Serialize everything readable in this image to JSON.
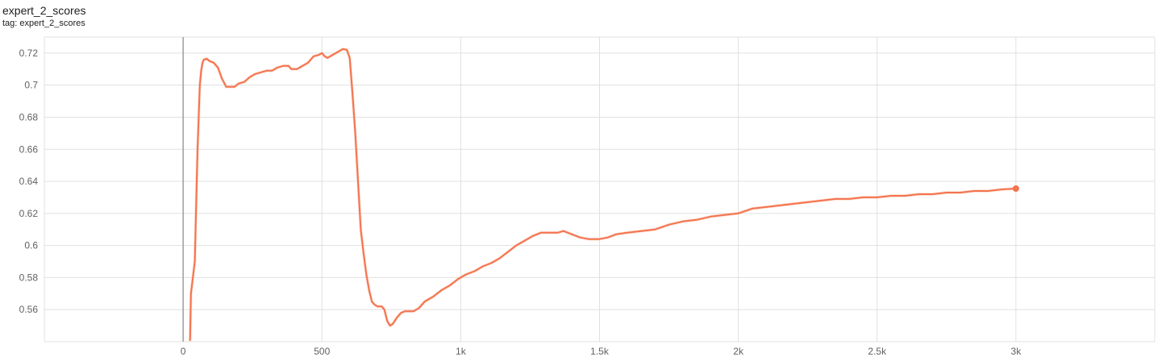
{
  "header": {
    "title": "expert_2_scores",
    "tag": "tag: expert_2_scores"
  },
  "chart_data": {
    "type": "line",
    "title": "expert_2_scores",
    "xlabel": "",
    "ylabel": "",
    "xlim": [
      -500,
      3500
    ],
    "ylim": [
      0.54,
      0.73
    ],
    "x_ticks": [
      0,
      500,
      1000,
      1500,
      2000,
      2500,
      3000
    ],
    "x_tick_labels": [
      "0",
      "500",
      "1k",
      "1.5k",
      "2k",
      "2.5k",
      "3k"
    ],
    "y_ticks": [
      0.56,
      0.58,
      0.6,
      0.62,
      0.64,
      0.66,
      0.68,
      0.7,
      0.72
    ],
    "y_tick_labels": [
      "0.56",
      "0.58",
      "0.6",
      "0.62",
      "0.64",
      "0.66",
      "0.68",
      "0.7",
      "0.72"
    ],
    "grid": true,
    "legend": "none",
    "colors": {
      "line": "#f4734e",
      "raw": "#f9c3ad",
      "zero_axis": "#9e9e9e"
    },
    "series": [
      {
        "points": [
          [
            25,
            0.541
          ],
          [
            28,
            0.57
          ],
          [
            35,
            0.58
          ],
          [
            42,
            0.59
          ],
          [
            48,
            0.632
          ],
          [
            52,
            0.66
          ],
          [
            56,
            0.68
          ],
          [
            60,
            0.7
          ],
          [
            65,
            0.709
          ],
          [
            70,
            0.714
          ],
          [
            75,
            0.716
          ],
          [
            85,
            0.7165
          ],
          [
            95,
            0.715
          ],
          [
            110,
            0.714
          ],
          [
            125,
            0.711
          ],
          [
            140,
            0.704
          ],
          [
            155,
            0.699
          ],
          [
            170,
            0.699
          ],
          [
            185,
            0.699
          ],
          [
            200,
            0.701
          ],
          [
            220,
            0.702
          ],
          [
            240,
            0.705
          ],
          [
            260,
            0.707
          ],
          [
            280,
            0.708
          ],
          [
            300,
            0.709
          ],
          [
            320,
            0.709
          ],
          [
            340,
            0.711
          ],
          [
            360,
            0.712
          ],
          [
            380,
            0.712
          ],
          [
            390,
            0.71
          ],
          [
            410,
            0.71
          ],
          [
            430,
            0.712
          ],
          [
            450,
            0.714
          ],
          [
            470,
            0.718
          ],
          [
            490,
            0.719
          ],
          [
            500,
            0.72
          ],
          [
            510,
            0.718
          ],
          [
            520,
            0.717
          ],
          [
            540,
            0.719
          ],
          [
            560,
            0.721
          ],
          [
            575,
            0.7225
          ],
          [
            590,
            0.722
          ],
          [
            600,
            0.717
          ],
          [
            610,
            0.695
          ],
          [
            620,
            0.67
          ],
          [
            630,
            0.64
          ],
          [
            640,
            0.61
          ],
          [
            650,
            0.595
          ],
          [
            660,
            0.582
          ],
          [
            670,
            0.572
          ],
          [
            680,
            0.565
          ],
          [
            690,
            0.563
          ],
          [
            700,
            0.562
          ],
          [
            715,
            0.562
          ],
          [
            725,
            0.56
          ],
          [
            735,
            0.553
          ],
          [
            745,
            0.55
          ],
          [
            755,
            0.551
          ],
          [
            770,
            0.555
          ],
          [
            785,
            0.558
          ],
          [
            800,
            0.559
          ],
          [
            830,
            0.559
          ],
          [
            850,
            0.561
          ],
          [
            870,
            0.565
          ],
          [
            900,
            0.568
          ],
          [
            930,
            0.572
          ],
          [
            960,
            0.575
          ],
          [
            990,
            0.579
          ],
          [
            1020,
            0.582
          ],
          [
            1050,
            0.584
          ],
          [
            1080,
            0.587
          ],
          [
            1110,
            0.589
          ],
          [
            1140,
            0.592
          ],
          [
            1170,
            0.596
          ],
          [
            1200,
            0.6
          ],
          [
            1230,
            0.603
          ],
          [
            1260,
            0.606
          ],
          [
            1290,
            0.608
          ],
          [
            1320,
            0.608
          ],
          [
            1350,
            0.608
          ],
          [
            1370,
            0.609
          ],
          [
            1400,
            0.607
          ],
          [
            1430,
            0.605
          ],
          [
            1460,
            0.604
          ],
          [
            1500,
            0.604
          ],
          [
            1530,
            0.605
          ],
          [
            1560,
            0.607
          ],
          [
            1600,
            0.608
          ],
          [
            1650,
            0.609
          ],
          [
            1700,
            0.61
          ],
          [
            1750,
            0.613
          ],
          [
            1800,
            0.615
          ],
          [
            1850,
            0.616
          ],
          [
            1900,
            0.618
          ],
          [
            1950,
            0.619
          ],
          [
            2000,
            0.62
          ],
          [
            2050,
            0.623
          ],
          [
            2100,
            0.624
          ],
          [
            2150,
            0.625
          ],
          [
            2200,
            0.626
          ],
          [
            2250,
            0.627
          ],
          [
            2300,
            0.628
          ],
          [
            2350,
            0.629
          ],
          [
            2400,
            0.629
          ],
          [
            2450,
            0.63
          ],
          [
            2500,
            0.63
          ],
          [
            2550,
            0.631
          ],
          [
            2600,
            0.631
          ],
          [
            2650,
            0.632
          ],
          [
            2700,
            0.632
          ],
          [
            2750,
            0.633
          ],
          [
            2800,
            0.633
          ],
          [
            2850,
            0.634
          ],
          [
            2900,
            0.634
          ],
          [
            2950,
            0.635
          ],
          [
            3000,
            0.6355
          ]
        ]
      }
    ]
  }
}
